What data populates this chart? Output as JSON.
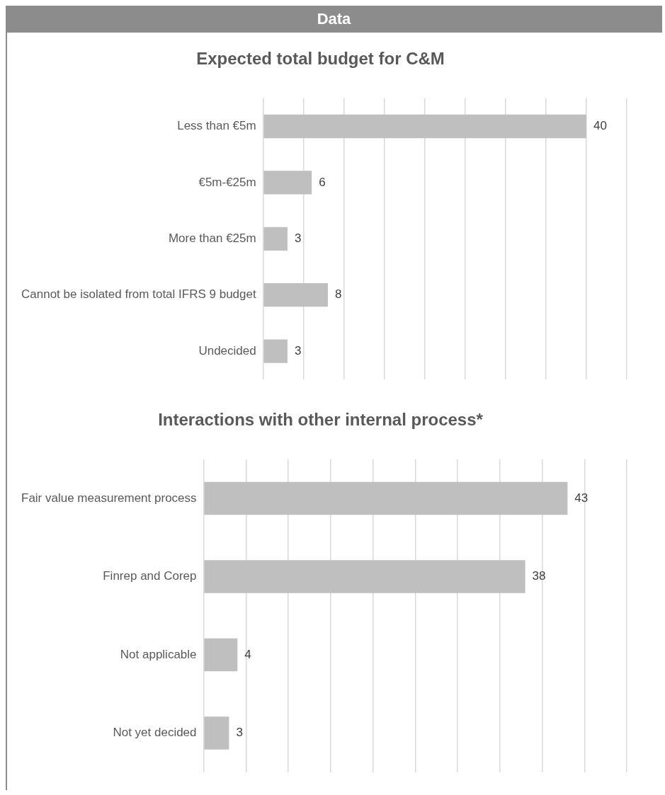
{
  "chart_data": [
    {
      "type": "bar",
      "orientation": "horizontal",
      "title": "Expected total budget for C&M",
      "annotations": [
        "Data"
      ],
      "categories": [
        "Less than €5m",
        "€5m-€25m",
        "More than €25m",
        "Cannot be isolated from total IFRS 9 budget",
        "Undecided"
      ],
      "values": [
        40,
        6,
        3,
        8,
        3
      ],
      "color": "#bfbfbf",
      "data_labels": true,
      "grid": "x",
      "tick_labels": "y",
      "xlim": [
        0,
        45
      ],
      "xticks": [
        {
          "value": 0,
          "label": null
        },
        {
          "value": 5,
          "label": null
        },
        {
          "value": 10,
          "label": null
        },
        {
          "value": 15,
          "label": null
        },
        {
          "value": 20,
          "label": null
        },
        {
          "value": 25,
          "label": null
        },
        {
          "value": 30,
          "label": null
        },
        {
          "value": 35,
          "label": null
        },
        {
          "value": 40,
          "label": null
        },
        {
          "value": 45,
          "label": null
        }
      ]
    },
    {
      "type": "bar",
      "orientation": "horizontal",
      "title": "Interactions with other internal process*",
      "categories": [
        "Fair value measurement process",
        "Finrep and Corep",
        "Not applicable",
        "Not yet decided"
      ],
      "values": [
        43,
        38,
        4,
        3
      ],
      "color": "#bfbfbf",
      "data_labels": true,
      "grid": "x",
      "tick_labels": "y",
      "xlim": [
        0,
        50
      ],
      "xticks": [
        {
          "value": 0,
          "label": null
        },
        {
          "value": 5,
          "label": null
        },
        {
          "value": 10,
          "label": null
        },
        {
          "value": 15,
          "label": null
        },
        {
          "value": 20,
          "label": null
        },
        {
          "value": 25,
          "label": null
        },
        {
          "value": 30,
          "label": null
        },
        {
          "value": 35,
          "label": null
        },
        {
          "value": 40,
          "label": null
        },
        {
          "value": 45,
          "label": null
        },
        {
          "value": 50,
          "label": null
        }
      ]
    }
  ]
}
